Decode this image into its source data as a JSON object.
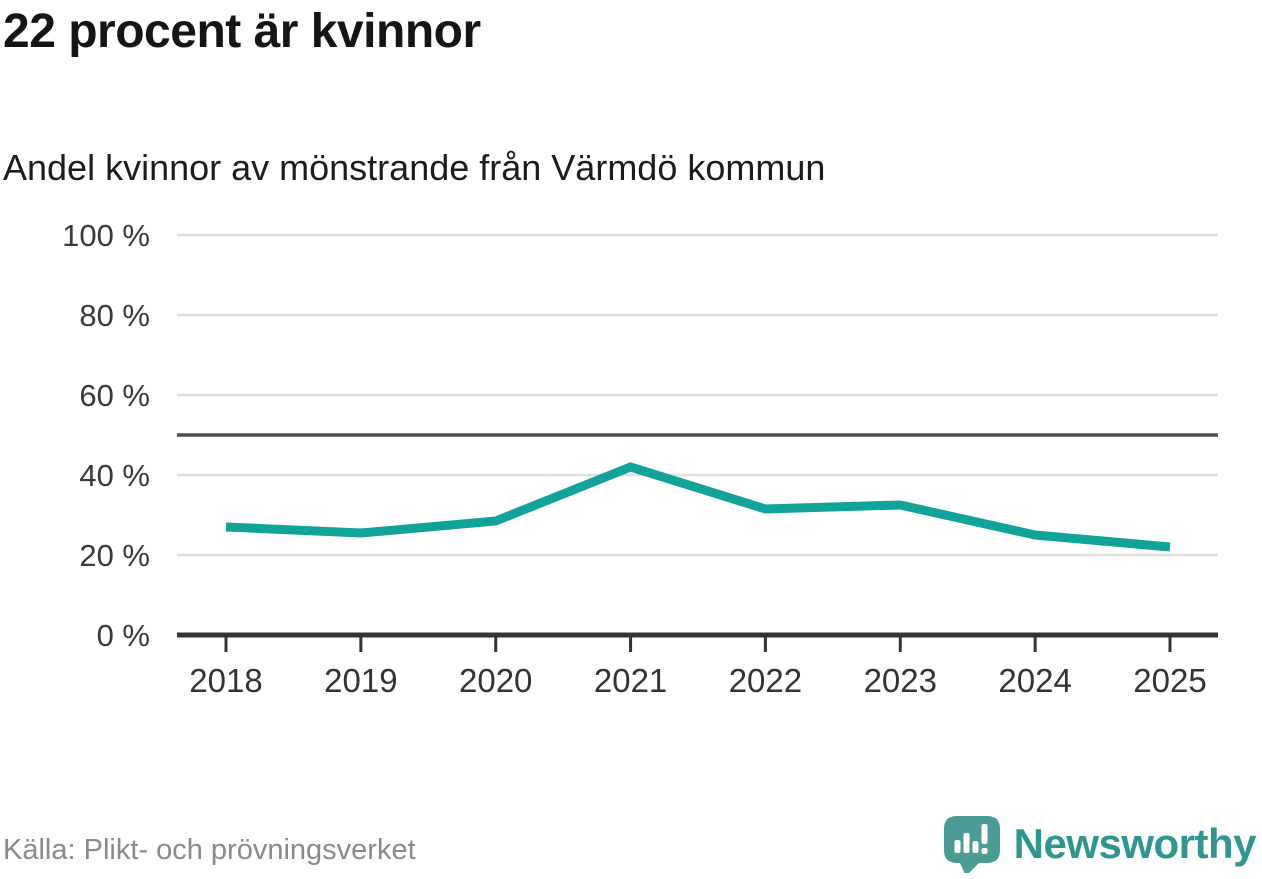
{
  "header": {
    "title": "22 procent är kvinnor",
    "subtitle": "Andel kvinnor av mönstrande från Värmdö kommun"
  },
  "chart_data": {
    "type": "line",
    "title": "22 procent är kvinnor",
    "subtitle": "Andel kvinnor av mönstrande från Värmdö kommun",
    "categories": [
      "2018",
      "2019",
      "2020",
      "2021",
      "2022",
      "2023",
      "2024",
      "2025"
    ],
    "values": [
      27,
      25.5,
      28.5,
      42,
      31.5,
      32.5,
      25,
      22
    ],
    "unit": "%",
    "xlabel": "",
    "ylabel": "",
    "ylim": [
      0,
      100
    ],
    "yticks": [
      0,
      20,
      40,
      60,
      80,
      100
    ],
    "ytick_labels": [
      "0 %",
      "20 %",
      "40 %",
      "60 %",
      "80 %",
      "100 %"
    ],
    "reference_line": 50,
    "grid": true,
    "legend": "none",
    "line_color": "#10a39a",
    "reference_line_color": "#4f4f4f",
    "gridline_color": "#dfdfdf",
    "axis_color": "#343434"
  },
  "footer": {
    "source": "Källa: Plikt- och prövningsverket",
    "brand": "Newsworthy",
    "brand_icon": "newsworthy-speech-bubble-bar-chart-icon",
    "brand_icon_color": "#4c9c96",
    "brand_text_color": "#2f968f"
  }
}
